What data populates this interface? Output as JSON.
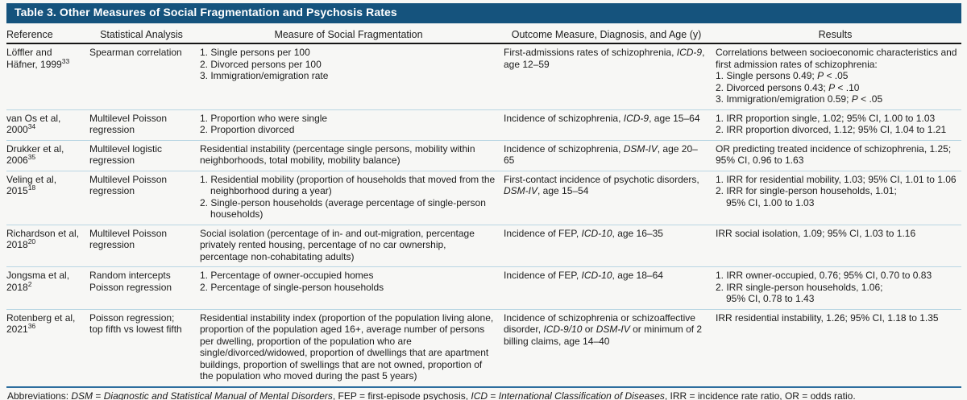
{
  "title": "Table 3. Other Measures of Social Fragmentation and Psychosis Rates",
  "colors": {
    "title_bar": "#15537d",
    "header_rule": "#161616",
    "row_rule": "#b9d6e3",
    "footer_rule": "#2e6e9e",
    "title_text": "#ffffff"
  },
  "columns": [
    "Reference",
    "Statistical Analysis",
    "Measure of Social Fragmentation",
    "Outcome Measure, Diagnosis, and Age (y)",
    "Results"
  ],
  "rows": [
    {
      "reference": "Löffler and\nHäfner, 1999^33^",
      "analysis": "Spearman correlation",
      "measure": [
        "1. Single persons per 100",
        "2. Divorced persons per 100",
        "3. Immigration/emigration rate"
      ],
      "outcome": "First-admissions rates of schizophrenia, *ICD-9*, age 12–59",
      "results": [
        "Correlations between socioeconomic characteristics and first admission rates of schizophrenia:",
        "1. Single persons 0.49; *P* < .05",
        "2. Divorced persons 0.43; *P* < .10",
        "3. Immigration/emigration 0.59; *P* < .05"
      ]
    },
    {
      "reference": "van Os et al,\n2000^34^",
      "analysis": "Multilevel Poisson\nregression",
      "measure": [
        "1. Proportion who were single",
        "2. Proportion divorced"
      ],
      "outcome": "Incidence of schizophrenia, *ICD-9*, age 15–64",
      "results": [
        "1. IRR proportion single, 1.02; 95% CI, 1.00 to 1.03",
        "2. IRR proportion divorced, 1.12; 95% CI, 1.04 to 1.21"
      ]
    },
    {
      "reference": "Drukker et al,\n2006^35^",
      "analysis": "Multilevel logistic\nregression",
      "measure": [
        "Residential instability (percentage single persons, mobility within neighborhoods, total mobility, mobility balance)"
      ],
      "outcome": "Incidence of schizophrenia, *DSM-IV*, age 20–65",
      "results": [
        "OR predicting treated incidence of schizophrenia, 1.25; 95% CI, 0.96 to 1.63"
      ]
    },
    {
      "reference": "Veling et al,\n2015^18^",
      "analysis": "Multilevel Poisson\nregression",
      "measure": [
        "1. Residential mobility (proportion of households that moved from the neighborhood during a year)",
        "2. Single-person households (average percentage of single-person households)"
      ],
      "outcome": "First-contact incidence of psychotic disorders, *DSM-IV*, age 15–54",
      "results": [
        "1. IRR for residential mobility, 1.03; 95% CI, 1.01 to 1.06",
        "2. IRR for single-person households, 1.01;\n95% CI, 1.00 to 1.03"
      ]
    },
    {
      "reference": "Richardson et al,\n2018^20^",
      "analysis": "Multilevel Poisson\nregression",
      "measure": [
        "Social isolation (percentage of in- and out-migration, percentage privately rented housing, percentage of no car ownership, percentage non-cohabitating adults)"
      ],
      "outcome": "Incidence of FEP, *ICD-10*, age 16–35",
      "results": [
        "IRR social isolation, 1.09; 95% CI, 1.03 to 1.16"
      ]
    },
    {
      "reference": "Jongsma et al,\n2018^2^",
      "analysis": "Random intercepts\nPoisson regression",
      "measure": [
        "1. Percentage of owner-occupied homes",
        "2. Percentage of single-person households"
      ],
      "outcome": "Incidence of FEP, *ICD-10*, age 18–64",
      "results": [
        "1. IRR owner-occupied, 0.76; 95% CI, 0.70 to 0.83",
        "2. IRR single-person households, 1.06;\n95% CI, 0.78 to 1.43"
      ]
    },
    {
      "reference": "Rotenberg et al,\n2021^36^",
      "analysis": "Poisson regression;\ntop fifth vs lowest fifth",
      "measure": [
        "Residential instability index (proportion of the population living alone, proportion of the population aged 16+, average number of persons per dwelling, proportion of the population who are single/divorced/widowed, proportion of dwellings that are apartment buildings, proportion of swellings that are not owned, proportion of the population who moved during the past 5 years)"
      ],
      "outcome": "Incidence of schizophrenia or schizoaffective disorder, *ICD-9/10* or *DSM-IV* or minimum of 2 billing claims, age 14–40",
      "results": [
        "IRR residential instability, 1.26; 95% CI, 1.18 to 1.35"
      ]
    }
  ],
  "footnote": "Abbreviations: *DSM* = *Diagnostic and Statistical Manual of Mental Disorders*, FEP = first-episode psychosis, *ICD* = *International Classification of Diseases*, IRR = incidence rate ratio, OR = odds ratio."
}
